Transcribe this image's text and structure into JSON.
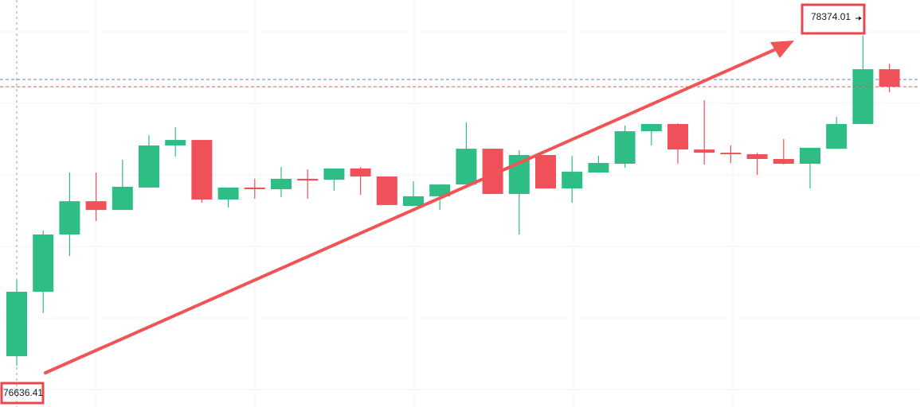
{
  "chart_data": {
    "type": "candlestick",
    "open": [
      76687,
      77026,
      77327,
      77502,
      77456,
      77574,
      77795,
      77824,
      77511,
      77574,
      77565,
      77620,
      77615,
      77674,
      77632,
      77477,
      77528,
      77590,
      77778,
      77540,
      77745,
      77569,
      77653,
      77699,
      77870,
      77908,
      77774,
      77757,
      77749,
      77724,
      77699,
      77778,
      77908,
      78196
    ],
    "high": [
      77089,
      77348,
      77653,
      77653,
      77720,
      77849,
      77891,
      77824,
      77574,
      77620,
      77682,
      77670,
      77674,
      77682,
      77632,
      77607,
      77590,
      77916,
      77778,
      77770,
      77745,
      77741,
      77741,
      77900,
      77908,
      77912,
      78033,
      77795,
      77757,
      77829,
      77783,
      77946,
      78374.01,
      78226
    ],
    "low": [
      76636.41,
      76913,
      77214,
      77398,
      77456,
      77574,
      77736,
      77494,
      77469,
      77515,
      77523,
      77515,
      77557,
      77536,
      77482,
      77477,
      77456,
      77590,
      77540,
      77327,
      77569,
      77494,
      77653,
      77678,
      77795,
      77699,
      77695,
      77703,
      77640,
      77695,
      77569,
      77778,
      77908,
      78075
    ],
    "close": [
      77026,
      77327,
      77502,
      77456,
      77578,
      77795,
      77824,
      77511,
      77574,
      77565,
      77620,
      77611,
      77674,
      77632,
      77482,
      77528,
      77590,
      77778,
      77540,
      77745,
      77569,
      77657,
      77703,
      77870,
      77908,
      77774,
      77757,
      77749,
      77724,
      77699,
      77783,
      77908,
      78196,
      78104
    ],
    "up_color": "#2ebd85",
    "down_color": "#ef5059",
    "ylim": [
      76420,
      78560
    ],
    "annotations": [
      {
        "text": "76636.41"
      },
      {
        "text": "78374.01"
      }
    ]
  }
}
